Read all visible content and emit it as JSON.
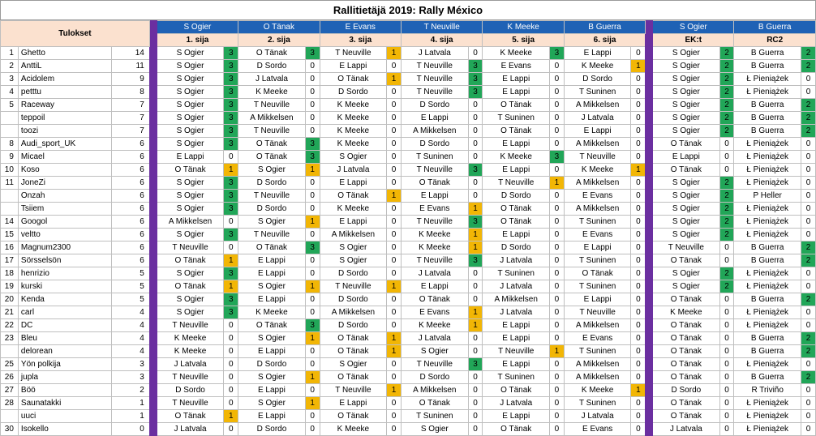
{
  "title": "Rallitietäjä 2019: Rally México",
  "results_label": "Tulokset",
  "columns": [
    {
      "name": "S Ogier",
      "label": "1. sija"
    },
    {
      "name": "O Tänak",
      "label": "2. sija"
    },
    {
      "name": "E Evans",
      "label": "3. sija"
    },
    {
      "name": "T Neuville",
      "label": "4. sija"
    },
    {
      "name": "K Meeke",
      "label": "5. sija"
    },
    {
      "name": "B Guerra",
      "label": "6. sija"
    },
    {
      "name": "S Ogier",
      "label": "EK:t"
    },
    {
      "name": "B Guerra",
      "label": "RC2"
    }
  ],
  "colors": {
    "header_blue": "#1f62b5",
    "header_peach": "#fbe1cf",
    "separator_purple": "#6b2fa0",
    "score_green": "#21a658",
    "score_yellow": "#f2b605"
  },
  "rows": [
    {
      "rank": "1",
      "name": "Ghetto",
      "total": "14",
      "picks": [
        [
          "S Ogier",
          "3"
        ],
        [
          "O Tänak",
          "3"
        ],
        [
          "T Neuville",
          "1"
        ],
        [
          "J Latvala",
          "0"
        ],
        [
          "K Meeke",
          "3"
        ],
        [
          "E Lappi",
          "0"
        ],
        [
          "S Ogier",
          "2"
        ],
        [
          "B Guerra",
          "2"
        ]
      ]
    },
    {
      "rank": "2",
      "name": "AnttiL",
      "total": "11",
      "picks": [
        [
          "S Ogier",
          "3"
        ],
        [
          "D Sordo",
          "0"
        ],
        [
          "E Lappi",
          "0"
        ],
        [
          "T Neuville",
          "3"
        ],
        [
          "E Evans",
          "0"
        ],
        [
          "K Meeke",
          "1"
        ],
        [
          "S Ogier",
          "2"
        ],
        [
          "B Guerra",
          "2"
        ]
      ]
    },
    {
      "rank": "3",
      "name": "Acidolem",
      "total": "9",
      "picks": [
        [
          "S Ogier",
          "3"
        ],
        [
          "J Latvala",
          "0"
        ],
        [
          "O Tänak",
          "1"
        ],
        [
          "T Neuville",
          "3"
        ],
        [
          "E Lappi",
          "0"
        ],
        [
          "D Sordo",
          "0"
        ],
        [
          "S Ogier",
          "2"
        ],
        [
          "Ł Pieniążek",
          "0"
        ]
      ]
    },
    {
      "rank": "4",
      "name": "petttu",
      "total": "8",
      "picks": [
        [
          "S Ogier",
          "3"
        ],
        [
          "K Meeke",
          "0"
        ],
        [
          "D Sordo",
          "0"
        ],
        [
          "T Neuville",
          "3"
        ],
        [
          "E Lappi",
          "0"
        ],
        [
          "T Suninen",
          "0"
        ],
        [
          "S Ogier",
          "2"
        ],
        [
          "Ł Pieniążek",
          "0"
        ]
      ]
    },
    {
      "rank": "5",
      "name": "Raceway",
      "total": "7",
      "picks": [
        [
          "S Ogier",
          "3"
        ],
        [
          "T Neuville",
          "0"
        ],
        [
          "K Meeke",
          "0"
        ],
        [
          "D Sordo",
          "0"
        ],
        [
          "O Tänak",
          "0"
        ],
        [
          "A Mikkelsen",
          "0"
        ],
        [
          "S Ogier",
          "2"
        ],
        [
          "B Guerra",
          "2"
        ]
      ]
    },
    {
      "rank": "",
      "name": "teppoil",
      "total": "7",
      "picks": [
        [
          "S Ogier",
          "3"
        ],
        [
          "A Mikkelsen",
          "0"
        ],
        [
          "K Meeke",
          "0"
        ],
        [
          "E Lappi",
          "0"
        ],
        [
          "T Suninen",
          "0"
        ],
        [
          "J Latvala",
          "0"
        ],
        [
          "S Ogier",
          "2"
        ],
        [
          "B Guerra",
          "2"
        ]
      ]
    },
    {
      "rank": "",
      "name": "toozi",
      "total": "7",
      "picks": [
        [
          "S Ogier",
          "3"
        ],
        [
          "T Neuville",
          "0"
        ],
        [
          "K Meeke",
          "0"
        ],
        [
          "A Mikkelsen",
          "0"
        ],
        [
          "O Tänak",
          "0"
        ],
        [
          "E Lappi",
          "0"
        ],
        [
          "S Ogier",
          "2"
        ],
        [
          "B Guerra",
          "2"
        ]
      ]
    },
    {
      "rank": "8",
      "name": "Audi_sport_UK",
      "total": "6",
      "picks": [
        [
          "S Ogier",
          "3"
        ],
        [
          "O Tänak",
          "3"
        ],
        [
          "K Meeke",
          "0"
        ],
        [
          "D Sordo",
          "0"
        ],
        [
          "E Lappi",
          "0"
        ],
        [
          "A Mikkelsen",
          "0"
        ],
        [
          "O Tänak",
          "0"
        ],
        [
          "Ł Pieniążek",
          "0"
        ]
      ]
    },
    {
      "rank": "9",
      "name": "Micael",
      "total": "6",
      "picks": [
        [
          "E Lappi",
          "0"
        ],
        [
          "O Tänak",
          "3"
        ],
        [
          "S Ogier",
          "0"
        ],
        [
          "T Suninen",
          "0"
        ],
        [
          "K Meeke",
          "3"
        ],
        [
          "T Neuville",
          "0"
        ],
        [
          "E Lappi",
          "0"
        ],
        [
          "Ł Pieniążek",
          "0"
        ]
      ]
    },
    {
      "rank": "10",
      "name": "Koso",
      "total": "6",
      "picks": [
        [
          "O Tänak",
          "1"
        ],
        [
          "S Ogier",
          "1"
        ],
        [
          "J Latvala",
          "0"
        ],
        [
          "T Neuville",
          "3"
        ],
        [
          "E Lappi",
          "0"
        ],
        [
          "K Meeke",
          "1"
        ],
        [
          "O Tänak",
          "0"
        ],
        [
          "Ł Pieniążek",
          "0"
        ]
      ]
    },
    {
      "rank": "11",
      "name": "JoneZi",
      "total": "6",
      "picks": [
        [
          "S Ogier",
          "3"
        ],
        [
          "D Sordo",
          "0"
        ],
        [
          "E Lappi",
          "0"
        ],
        [
          "O Tänak",
          "0"
        ],
        [
          "T Neuville",
          "1"
        ],
        [
          "A Mikkelsen",
          "0"
        ],
        [
          "S Ogier",
          "2"
        ],
        [
          "Ł Pieniążek",
          "0"
        ]
      ]
    },
    {
      "rank": "",
      "name": "Onzah",
      "total": "6",
      "picks": [
        [
          "S Ogier",
          "3"
        ],
        [
          "T Neuville",
          "0"
        ],
        [
          "O Tänak",
          "1"
        ],
        [
          "E Lappi",
          "0"
        ],
        [
          "D Sordo",
          "0"
        ],
        [
          "E Evans",
          "0"
        ],
        [
          "S Ogier",
          "2"
        ],
        [
          "P Heller",
          "0"
        ]
      ]
    },
    {
      "rank": "",
      "name": "Tsiiem",
      "total": "6",
      "picks": [
        [
          "S Ogier",
          "3"
        ],
        [
          "D Sordo",
          "0"
        ],
        [
          "K Meeke",
          "0"
        ],
        [
          "E Evans",
          "1"
        ],
        [
          "O Tänak",
          "0"
        ],
        [
          "A Mikkelsen",
          "0"
        ],
        [
          "S Ogier",
          "2"
        ],
        [
          "Ł Pieniążek",
          "0"
        ]
      ]
    },
    {
      "rank": "14",
      "name": "Googol",
      "total": "6",
      "picks": [
        [
          "A Mikkelsen",
          "0"
        ],
        [
          "S Ogier",
          "1"
        ],
        [
          "E Lappi",
          "0"
        ],
        [
          "T Neuville",
          "3"
        ],
        [
          "O Tänak",
          "0"
        ],
        [
          "T Suninen",
          "0"
        ],
        [
          "S Ogier",
          "2"
        ],
        [
          "Ł Pieniążek",
          "0"
        ]
      ]
    },
    {
      "rank": "15",
      "name": "veltto",
      "total": "6",
      "picks": [
        [
          "S Ogier",
          "3"
        ],
        [
          "T Neuville",
          "0"
        ],
        [
          "A Mikkelsen",
          "0"
        ],
        [
          "K Meeke",
          "1"
        ],
        [
          "E Lappi",
          "0"
        ],
        [
          "E Evans",
          "0"
        ],
        [
          "S Ogier",
          "2"
        ],
        [
          "Ł Pieniążek",
          "0"
        ]
      ]
    },
    {
      "rank": "16",
      "name": "Magnum2300",
      "total": "6",
      "picks": [
        [
          "T Neuville",
          "0"
        ],
        [
          "O Tänak",
          "3"
        ],
        [
          "S Ogier",
          "0"
        ],
        [
          "K Meeke",
          "1"
        ],
        [
          "D Sordo",
          "0"
        ],
        [
          "E Lappi",
          "0"
        ],
        [
          "T Neuville",
          "0"
        ],
        [
          "B Guerra",
          "2"
        ]
      ]
    },
    {
      "rank": "17",
      "name": "Sörsselsön",
      "total": "6",
      "picks": [
        [
          "O Tänak",
          "1"
        ],
        [
          "E Lappi",
          "0"
        ],
        [
          "S Ogier",
          "0"
        ],
        [
          "T Neuville",
          "3"
        ],
        [
          "J Latvala",
          "0"
        ],
        [
          "T Suninen",
          "0"
        ],
        [
          "O Tänak",
          "0"
        ],
        [
          "B Guerra",
          "2"
        ]
      ]
    },
    {
      "rank": "18",
      "name": "henrizio",
      "total": "5",
      "picks": [
        [
          "S Ogier",
          "3"
        ],
        [
          "E Lappi",
          "0"
        ],
        [
          "D Sordo",
          "0"
        ],
        [
          "J Latvala",
          "0"
        ],
        [
          "T Suninen",
          "0"
        ],
        [
          "O Tänak",
          "0"
        ],
        [
          "S Ogier",
          "2"
        ],
        [
          "Ł Pieniążek",
          "0"
        ]
      ]
    },
    {
      "rank": "19",
      "name": "kurski",
      "total": "5",
      "picks": [
        [
          "O Tänak",
          "1"
        ],
        [
          "S Ogier",
          "1"
        ],
        [
          "T Neuville",
          "1"
        ],
        [
          "E Lappi",
          "0"
        ],
        [
          "J Latvala",
          "0"
        ],
        [
          "T Suninen",
          "0"
        ],
        [
          "S Ogier",
          "2"
        ],
        [
          "Ł Pieniążek",
          "0"
        ]
      ]
    },
    {
      "rank": "20",
      "name": "Kenda",
      "total": "5",
      "picks": [
        [
          "S Ogier",
          "3"
        ],
        [
          "E Lappi",
          "0"
        ],
        [
          "D Sordo",
          "0"
        ],
        [
          "O Tänak",
          "0"
        ],
        [
          "A Mikkelsen",
          "0"
        ],
        [
          "E Lappi",
          "0"
        ],
        [
          "O Tänak",
          "0"
        ],
        [
          "B Guerra",
          "2"
        ]
      ]
    },
    {
      "rank": "21",
      "name": "carl",
      "total": "4",
      "picks": [
        [
          "S Ogier",
          "3"
        ],
        [
          "K Meeke",
          "0"
        ],
        [
          "A Mikkelsen",
          "0"
        ],
        [
          "E Evans",
          "1"
        ],
        [
          "J Latvala",
          "0"
        ],
        [
          "T Neuville",
          "0"
        ],
        [
          "K Meeke",
          "0"
        ],
        [
          "Ł Pieniążek",
          "0"
        ]
      ]
    },
    {
      "rank": "22",
      "name": "DC",
      "total": "4",
      "picks": [
        [
          "T Neuville",
          "0"
        ],
        [
          "O Tänak",
          "3"
        ],
        [
          "D Sordo",
          "0"
        ],
        [
          "K Meeke",
          "1"
        ],
        [
          "E Lappi",
          "0"
        ],
        [
          "A Mikkelsen",
          "0"
        ],
        [
          "O Tänak",
          "0"
        ],
        [
          "Ł Pieniążek",
          "0"
        ]
      ]
    },
    {
      "rank": "23",
      "name": "Bleu",
      "total": "4",
      "picks": [
        [
          "K Meeke",
          "0"
        ],
        [
          "S Ogier",
          "1"
        ],
        [
          "O Tänak",
          "1"
        ],
        [
          "J Latvala",
          "0"
        ],
        [
          "E Lappi",
          "0"
        ],
        [
          "E Evans",
          "0"
        ],
        [
          "O Tänak",
          "0"
        ],
        [
          "B Guerra",
          "2"
        ]
      ]
    },
    {
      "rank": "",
      "name": "delorean",
      "total": "4",
      "picks": [
        [
          "K Meeke",
          "0"
        ],
        [
          "E Lappi",
          "0"
        ],
        [
          "O Tänak",
          "1"
        ],
        [
          "S Ogier",
          "0"
        ],
        [
          "T Neuville",
          "1"
        ],
        [
          "T Suninen",
          "0"
        ],
        [
          "O Tänak",
          "0"
        ],
        [
          "B Guerra",
          "2"
        ]
      ]
    },
    {
      "rank": "25",
      "name": "Yön polkija",
      "total": "3",
      "picks": [
        [
          "J Latvala",
          "0"
        ],
        [
          "D Sordo",
          "0"
        ],
        [
          "S Ogier",
          "0"
        ],
        [
          "T Neuville",
          "3"
        ],
        [
          "E Lappi",
          "0"
        ],
        [
          "A Mikkelsen",
          "0"
        ],
        [
          "O Tänak",
          "0"
        ],
        [
          "Ł Pieniążek",
          "0"
        ]
      ]
    },
    {
      "rank": "26",
      "name": "jupla",
      "total": "3",
      "picks": [
        [
          "T Neuville",
          "0"
        ],
        [
          "S Ogier",
          "1"
        ],
        [
          "O Tänak",
          "0"
        ],
        [
          "D Sordo",
          "0"
        ],
        [
          "T Suninen",
          "0"
        ],
        [
          "A Mikkelsen",
          "0"
        ],
        [
          "O Tänak",
          "0"
        ],
        [
          "B Guerra",
          "2"
        ]
      ]
    },
    {
      "rank": "27",
      "name": "Böö",
      "total": "2",
      "picks": [
        [
          "D Sordo",
          "0"
        ],
        [
          "E Lappi",
          "0"
        ],
        [
          "T Neuville",
          "1"
        ],
        [
          "A Mikkelsen",
          "0"
        ],
        [
          "O Tänak",
          "0"
        ],
        [
          "K Meeke",
          "1"
        ],
        [
          "D Sordo",
          "0"
        ],
        [
          "R Triviño",
          "0"
        ]
      ]
    },
    {
      "rank": "28",
      "name": "Saunatakki",
      "total": "1",
      "picks": [
        [
          "T Neuville",
          "0"
        ],
        [
          "S Ogier",
          "1"
        ],
        [
          "E Lappi",
          "0"
        ],
        [
          "O Tänak",
          "0"
        ],
        [
          "J Latvala",
          "0"
        ],
        [
          "T Suninen",
          "0"
        ],
        [
          "O Tänak",
          "0"
        ],
        [
          "Ł Pieniążek",
          "0"
        ]
      ]
    },
    {
      "rank": "",
      "name": "uuci",
      "total": "1",
      "picks": [
        [
          "O Tänak",
          "1"
        ],
        [
          "E Lappi",
          "0"
        ],
        [
          "O Tänak",
          "0"
        ],
        [
          "T Suninen",
          "0"
        ],
        [
          "E Lappi",
          "0"
        ],
        [
          "J Latvala",
          "0"
        ],
        [
          "O Tänak",
          "0"
        ],
        [
          "Ł Pieniążek",
          "0"
        ]
      ]
    },
    {
      "rank": "30",
      "name": "Isokello",
      "total": "0",
      "picks": [
        [
          "J Latvala",
          "0"
        ],
        [
          "D Sordo",
          "0"
        ],
        [
          "K Meeke",
          "0"
        ],
        [
          "S Ogier",
          "0"
        ],
        [
          "O Tänak",
          "0"
        ],
        [
          "E Evans",
          "0"
        ],
        [
          "J Latvala",
          "0"
        ],
        [
          "Ł Pieniążek",
          "0"
        ]
      ]
    }
  ]
}
